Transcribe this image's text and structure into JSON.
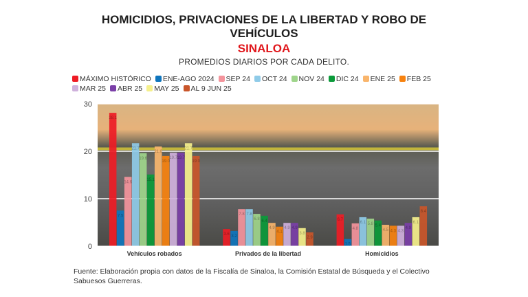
{
  "header": {
    "title_line1": "HOMICIDIOS, PRIVACIONES DE LA LIBERTAD Y ROBO DE",
    "title_line2": "VEHÍCULOS",
    "region": "SINALOA",
    "subtitle": "PROMEDIOS DIARIOS POR CADA DELITO."
  },
  "source": "Fuente: Elaboración propia con datos de la Fiscalía de Sinaloa, la Comisión Estatal de Búsqueda y el Colectivo Sabuesos Guerreras.",
  "chart_data": {
    "type": "bar",
    "title": "HOMICIDIOS, PRIVACIONES DE LA LIBERTAD Y ROBO DE VEHÍCULOS — SINALOA",
    "subtitle": "PROMEDIOS DIARIOS POR CADA DELITO.",
    "xlabel": "",
    "ylabel": "",
    "ylim": [
      0,
      30
    ],
    "yticks": [
      0,
      10,
      20,
      30
    ],
    "grid": true,
    "legend_position": "top",
    "categories": [
      "Vehículos robados",
      "Privados de la libertad",
      "Homicidios"
    ],
    "series": [
      {
        "name": "MÁXIMO HISTÓRICO",
        "color": "#ee1c25",
        "values": [
          28.1,
          3.6,
          6.7
        ]
      },
      {
        "name": "ENE-AGO 2024",
        "color": "#0f75bd",
        "values": [
          7.5,
          3.2,
          1.5
        ]
      },
      {
        "name": "SEP 24",
        "color": "#f4949c",
        "values": [
          14.6,
          7.8,
          4.8
        ]
      },
      {
        "name": "OCT 24",
        "color": "#8fcbe8",
        "values": [
          21.7,
          7.8,
          6.1
        ]
      },
      {
        "name": "NOV 24",
        "color": "#9fd58b",
        "values": [
          19.6,
          6.8,
          5.8
        ]
      },
      {
        "name": "DIC 24",
        "color": "#0b9a3a",
        "values": [
          15.1,
          6.4,
          5.4
        ]
      },
      {
        "name": "ENE 25",
        "color": "#f9b56c",
        "values": [
          21.0,
          4.9,
          4.5
        ]
      },
      {
        "name": "FEB 25",
        "color": "#f7820f",
        "values": [
          19.0,
          4.1,
          4.3
        ]
      },
      {
        "name": "MAR 25",
        "color": "#cfb1dc",
        "values": [
          19.7,
          4.9,
          4.3
        ]
      },
      {
        "name": "ABR 25",
        "color": "#7b3fa8",
        "values": [
          19.7,
          4.9,
          4.9
        ]
      },
      {
        "name": "MAY 25",
        "color": "#f5f08c",
        "values": [
          21.7,
          3.8,
          6.1
        ]
      },
      {
        "name": "AL 9 JUN 25",
        "color": "#c9562a",
        "values": [
          19.0,
          2.9,
          8.4
        ]
      }
    ]
  }
}
